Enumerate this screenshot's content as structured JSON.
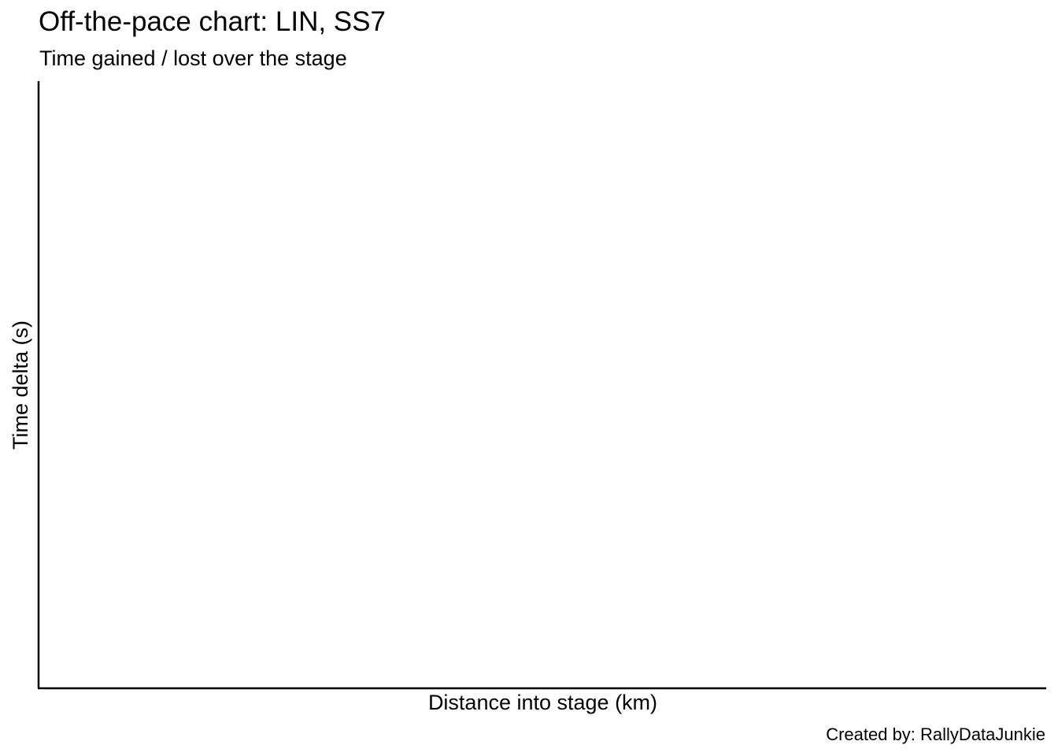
{
  "chart_data": {
    "type": "line",
    "title": "Off-the-pace chart: LIN, SS7",
    "subtitle": "Time gained / lost over the stage",
    "xlabel": "Distance into stage (km)",
    "ylabel": "Time delta (s)",
    "caption": "Created by: RallyDataJunkie",
    "series": [],
    "grid": false,
    "legend": "none",
    "colors": {
      "axis": "#000000",
      "background": "#ffffff",
      "text": "#000000"
    }
  }
}
